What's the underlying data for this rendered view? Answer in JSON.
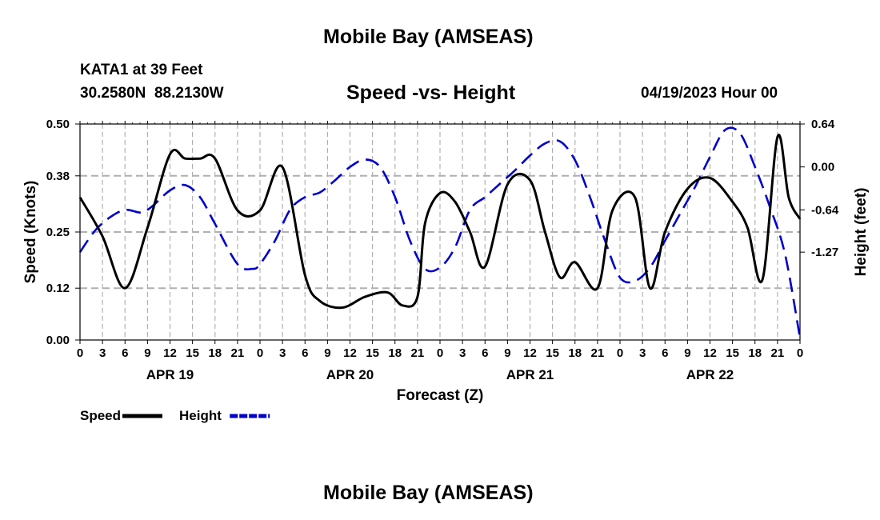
{
  "page": {
    "title": "Mobile Bay (AMSEAS)",
    "station": "KATA1 at 39 Feet",
    "coords": "30.2580N  88.2130W",
    "subtitle": "Speed -vs- Height",
    "datetime": "04/19/2023 Hour 00",
    "footer_title": "Mobile Bay (AMSEAS)"
  },
  "chart_data": {
    "type": "line",
    "title": "Speed -vs- Height",
    "xlabel": "Forecast (Z)",
    "ylabel": "Speed (Knots)",
    "y2label": "Height (feet)",
    "xlim": [
      0,
      96
    ],
    "ylim": [
      0,
      0.5
    ],
    "y2lim": [
      -2.58,
      0.64
    ],
    "x_ticks": [
      0,
      3,
      6,
      9,
      12,
      15,
      18,
      21,
      24,
      27,
      30,
      33,
      36,
      39,
      42,
      45,
      48,
      51,
      54,
      57,
      60,
      63,
      66,
      69,
      72,
      75,
      78,
      81,
      84,
      87,
      90,
      93,
      96
    ],
    "x_tick_labels": [
      "0",
      "3",
      "6",
      "9",
      "12",
      "15",
      "18",
      "21",
      "0",
      "3",
      "6",
      "9",
      "12",
      "15",
      "18",
      "21",
      "0",
      "3",
      "6",
      "9",
      "12",
      "15",
      "18",
      "21",
      "0",
      "3",
      "6",
      "9",
      "12",
      "15",
      "18",
      "21",
      "0"
    ],
    "y_ticks": [
      0.0,
      0.12,
      0.25,
      0.38,
      0.5
    ],
    "y_tick_labels": [
      "0.00",
      "0.12",
      "0.25",
      "0.38",
      "0.50"
    ],
    "y2_ticks": [
      -1.27,
      -0.64,
      0.0,
      0.64
    ],
    "y2_tick_labels": [
      "-1.27",
      "-0.64",
      "0.00",
      "0.64"
    ],
    "date_labels": [
      {
        "x": 12,
        "label": "APR 19"
      },
      {
        "x": 36,
        "label": "APR 20"
      },
      {
        "x": 60,
        "label": "APR 21"
      },
      {
        "x": 84,
        "label": "APR 22"
      }
    ],
    "grid": true,
    "legend_position": "bottom-left",
    "series": [
      {
        "name": "Speed",
        "axis": "left",
        "color": "#000000",
        "dash": "solid",
        "x": [
          0,
          3,
          6,
          9,
          12,
          14,
          16,
          18,
          21,
          24,
          27,
          30,
          32,
          35,
          38,
          41,
          43,
          45,
          46,
          48,
          50,
          52,
          54,
          57,
          60,
          62,
          64,
          66,
          69,
          71,
          74,
          76,
          78,
          81,
          84,
          87,
          89,
          91,
          93,
          94.5,
          96
        ],
        "values": [
          0.33,
          0.24,
          0.12,
          0.26,
          0.43,
          0.42,
          0.42,
          0.42,
          0.3,
          0.3,
          0.4,
          0.15,
          0.09,
          0.075,
          0.1,
          0.11,
          0.08,
          0.1,
          0.27,
          0.34,
          0.32,
          0.25,
          0.17,
          0.36,
          0.37,
          0.25,
          0.145,
          0.18,
          0.12,
          0.3,
          0.33,
          0.12,
          0.25,
          0.35,
          0.375,
          0.32,
          0.26,
          0.14,
          0.47,
          0.33,
          0.28
        ]
      },
      {
        "name": "Height",
        "axis": "right",
        "color": "#0000cc",
        "dash": "dashed",
        "x": [
          0,
          2,
          4,
          6,
          8,
          9,
          10,
          12,
          14,
          16,
          18,
          21,
          23,
          24,
          26,
          28,
          30,
          32,
          34,
          36,
          38,
          40,
          42,
          44,
          46,
          48,
          50,
          52,
          54,
          56,
          58,
          60,
          62,
          64,
          66,
          68,
          70,
          72,
          74,
          76,
          78,
          80,
          82,
          84,
          86,
          88,
          90,
          92,
          94,
          96
        ],
        "values": [
          -1.27,
          -0.95,
          -0.75,
          -0.64,
          -0.68,
          -0.64,
          -0.55,
          -0.35,
          -0.27,
          -0.45,
          -0.85,
          -1.45,
          -1.52,
          -1.45,
          -1.1,
          -0.64,
          -0.45,
          -0.38,
          -0.2,
          0.0,
          0.11,
          0.0,
          -0.45,
          -1.1,
          -1.52,
          -1.5,
          -1.2,
          -0.64,
          -0.45,
          -0.25,
          -0.05,
          0.17,
          0.35,
          0.38,
          0.1,
          -0.45,
          -1.1,
          -1.65,
          -1.7,
          -1.5,
          -1.1,
          -0.7,
          -0.3,
          0.15,
          0.55,
          0.5,
          0.0,
          -0.6,
          -1.3,
          -2.55
        ]
      }
    ]
  }
}
